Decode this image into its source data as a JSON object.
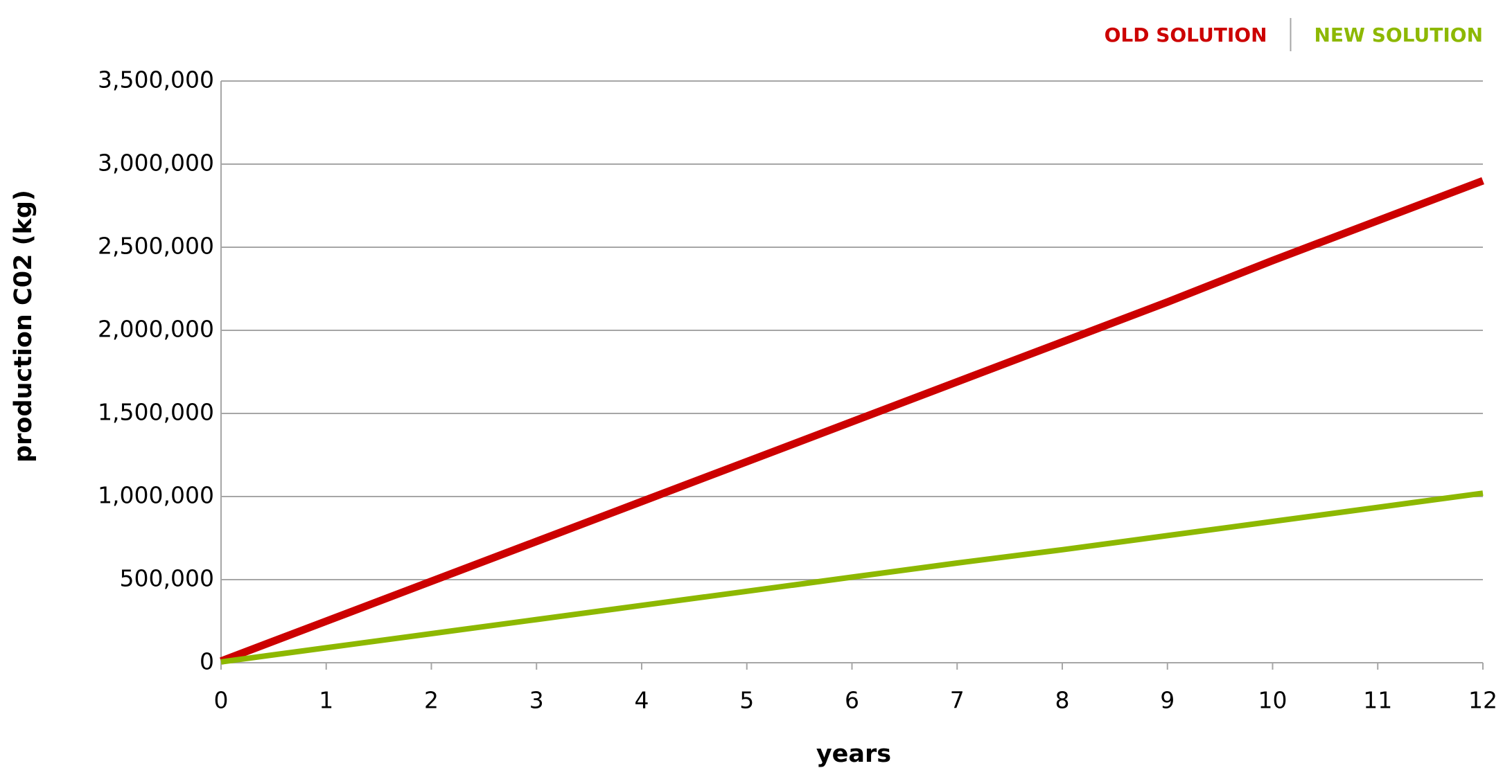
{
  "chart_data": {
    "type": "line",
    "x_label": "years",
    "y_label": "production C02 (kg)",
    "x": [
      0,
      1,
      2,
      3,
      4,
      5,
      6,
      7,
      8,
      9,
      10,
      11,
      12
    ],
    "series": [
      {
        "name": "OLD SOLUTION",
        "color": "#cc0000",
        "values": [
          10000,
          250000,
          490000,
          730000,
          970000,
          1210000,
          1450000,
          1690000,
          1930000,
          2170000,
          2420000,
          2660000,
          2900000
        ]
      },
      {
        "name": "NEW SOLUTION",
        "color": "#8db800",
        "values": [
          5000,
          90000,
          175000,
          260000,
          345000,
          430000,
          515000,
          600000,
          680000,
          765000,
          850000,
          935000,
          1020000
        ]
      }
    ],
    "xlim": [
      0,
      12
    ],
    "xticks": [
      0,
      1,
      2,
      3,
      4,
      5,
      6,
      7,
      8,
      9,
      10,
      11,
      12
    ],
    "ylim": [
      0,
      3500000
    ],
    "yticks": [
      0,
      {
        "value": 500000,
        "label": "500,000"
      },
      {
        "value": 1000000,
        "label": "1,000,000"
      },
      {
        "value": 1500000,
        "label": "1,500,000"
      },
      {
        "value": 2000000,
        "label": "2,000,000"
      },
      {
        "value": 2500000,
        "label": "2,500,000"
      },
      {
        "value": 3000000,
        "label": "3,000,000"
      },
      {
        "value": 3500000,
        "label": "3,500,000"
      }
    ],
    "grid": true,
    "legend": "top-right"
  }
}
